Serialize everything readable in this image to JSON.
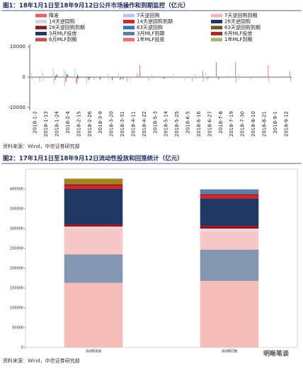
{
  "chart_data": [
    {
      "type": "bar",
      "title": "图1：18年1月1日至18年9月12日公开市场操作和到期监控（亿元）",
      "source": "资料来源：Wind，中信证券研究部",
      "categories": [
        "2018-1-2",
        "2018-1-13",
        "2018-1-24",
        "2018-2-4",
        "2018-2-15",
        "2018-2-26",
        "2018-3-9",
        "2018-3-20",
        "2018-3-31",
        "2018-4-11",
        "2018-4-22",
        "2018-5-3",
        "2018-5-14",
        "2018-5-25",
        "2018-6-5",
        "2018-6-16",
        "2018-6-27",
        "2018-7-8",
        "2018-7-19",
        "2018-7-30",
        "2018-8-10",
        "2018-8-21",
        "2018-9-1",
        "2018-9-12"
      ],
      "ylim": [
        -10000,
        10000
      ],
      "yticks": [
        10000,
        0,
        -10000
      ],
      "series": [
        {
          "name": "降准",
          "color": "#e06666",
          "values": [
            0,
            0,
            0,
            0,
            0,
            0,
            0,
            0,
            0,
            0,
            4000,
            0,
            0,
            0,
            0,
            0,
            0,
            5000,
            0,
            0,
            0,
            0,
            0,
            0
          ]
        },
        {
          "name": "7天逆回购",
          "color": "#b4c7e7",
          "values": [
            1500,
            2000,
            3000,
            2500,
            3000,
            0,
            500,
            1000,
            1500,
            0,
            1000,
            800,
            0,
            1200,
            0,
            1000,
            1500,
            0,
            800,
            1000,
            0,
            500,
            0,
            600
          ]
        },
        {
          "name": "7天逆回购到期",
          "color": "#f4b6b6",
          "values": [
            -1000,
            -1500,
            -2500,
            -3000,
            -2000,
            -2500,
            -500,
            -1000,
            -1000,
            -1500,
            -500,
            -800,
            -600,
            -500,
            -1200,
            -800,
            -1500,
            -1000,
            -600,
            -900,
            -1000,
            -400,
            -500,
            -300
          ]
        },
        {
          "name": "14天逆回购",
          "color": "#d0d5dd",
          "values": [
            0,
            1000,
            1500,
            2000,
            500,
            0,
            0,
            800,
            0,
            0,
            0,
            600,
            0,
            0,
            400,
            600,
            0,
            0,
            0,
            0,
            0,
            0,
            0,
            0
          ]
        },
        {
          "name": "14天逆回购到期",
          "color": "#d9232d",
          "values": [
            0,
            0,
            -1000,
            -1500,
            -2000,
            -500,
            0,
            0,
            -800,
            0,
            0,
            0,
            -600,
            0,
            0,
            0,
            -400,
            -600,
            0,
            0,
            0,
            0,
            0,
            0
          ]
        },
        {
          "name": "28天逆回购",
          "color": "#1f3864",
          "values": [
            0,
            0,
            500,
            1000,
            800,
            0,
            0,
            0,
            0,
            0,
            0,
            0,
            0,
            0,
            0,
            0,
            0,
            0,
            0,
            0,
            0,
            0,
            0,
            0
          ]
        },
        {
          "name": "28天逆回购到期",
          "color": "#8b1a1a",
          "values": [
            0,
            0,
            0,
            0,
            -500,
            -1000,
            -800,
            0,
            0,
            0,
            0,
            0,
            0,
            0,
            0,
            0,
            0,
            0,
            0,
            0,
            0,
            0,
            0,
            0
          ]
        },
        {
          "name": "63天逆回购",
          "color": "#2e75b6",
          "values": [
            0,
            0,
            1000,
            800,
            0,
            0,
            0,
            0,
            0,
            0,
            0,
            0,
            0,
            0,
            0,
            0,
            0,
            0,
            0,
            0,
            0,
            0,
            0,
            0
          ]
        },
        {
          "name": "63天逆回购到期",
          "color": "#6b5a1e",
          "values": [
            0,
            0,
            0,
            0,
            0,
            0,
            0,
            -1000,
            -800,
            0,
            0,
            0,
            0,
            0,
            0,
            0,
            0,
            0,
            0,
            0,
            0,
            0,
            0,
            0
          ]
        },
        {
          "name": "3月MLF投放",
          "color": "#203864",
          "values": [
            0,
            0,
            0,
            0,
            0,
            0,
            0,
            0,
            0,
            0,
            0,
            0,
            0,
            0,
            0,
            0,
            0,
            0,
            0,
            0,
            0,
            0,
            0,
            0
          ]
        },
        {
          "name": "3月MLF到期",
          "color": "#5b7fa6",
          "values": [
            0,
            0,
            0,
            0,
            0,
            0,
            0,
            0,
            0,
            0,
            0,
            0,
            0,
            0,
            0,
            0,
            0,
            0,
            0,
            0,
            0,
            0,
            0,
            0
          ]
        },
        {
          "name": "6月MLF投放",
          "color": "#a52a2a",
          "values": [
            0,
            0,
            0,
            0,
            0,
            0,
            0,
            0,
            0,
            0,
            0,
            0,
            0,
            0,
            0,
            0,
            0,
            0,
            0,
            0,
            0,
            0,
            0,
            0
          ]
        },
        {
          "name": "6月MLF到期",
          "color": "#c0504d",
          "values": [
            0,
            0,
            0,
            0,
            0,
            0,
            0,
            0,
            0,
            0,
            0,
            0,
            0,
            0,
            0,
            0,
            0,
            0,
            0,
            0,
            0,
            0,
            0,
            0
          ]
        },
        {
          "name": "1年MLF投放",
          "color": "#e8716f",
          "values": [
            0,
            0,
            0,
            0,
            0,
            0,
            0,
            0,
            0,
            1300,
            0,
            0,
            0,
            0,
            0,
            2000,
            0,
            0,
            5000,
            0,
            0,
            4000,
            0,
            2000
          ]
        },
        {
          "name": "1年MLF到期",
          "color": "#a9b36b",
          "values": [
            -1500,
            0,
            0,
            0,
            0,
            -1000,
            0,
            0,
            -1500,
            0,
            -1300,
            0,
            0,
            0,
            -1500,
            -1600,
            0,
            0,
            -1900,
            0,
            0,
            -1500,
            0,
            -1300
          ]
        }
      ]
    },
    {
      "type": "stacked_bar",
      "title": "图2：17年1月1日至18年9月12日流动性投放和回笼统计（亿元）",
      "source": "资料来源：Wind，中信证券研究部",
      "categories": [
        "流动性投放",
        "流动性回笼"
      ],
      "ylim": [
        0,
        450000
      ],
      "yticks": [
        0,
        50000,
        100000,
        150000,
        200000,
        250000,
        300000,
        350000,
        400000
      ],
      "series": [
        {
          "color": "#f6bcb8",
          "values": [
            163000,
            168000
          ]
        },
        {
          "color": "#8497b0",
          "values": [
            72000,
            79000
          ]
        },
        {
          "color": "#f8c8c8",
          "values": [
            65000,
            47000
          ]
        },
        {
          "color": "#dcdde8",
          "values": [
            5000,
            6000
          ]
        },
        {
          "color": "#c00000",
          "values": [
            5000,
            6000
          ]
        },
        {
          "color": "#1f3864",
          "values": [
            90000,
            70000
          ]
        },
        {
          "color": "#e0202a",
          "values": [
            8000,
            8000
          ]
        },
        {
          "color": "#8b1a1a",
          "values": [
            4000,
            3000
          ]
        },
        {
          "color": "#a08420",
          "values": [
            14000,
            0
          ]
        },
        {
          "color": "#5b7fa6",
          "values": [
            0,
            12000
          ]
        }
      ]
    }
  ],
  "watermark": "明晰笔谈"
}
